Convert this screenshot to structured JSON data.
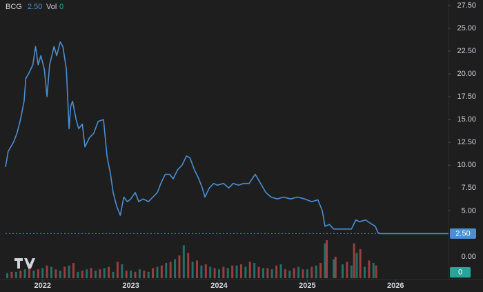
{
  "chart_data": {
    "type": "line",
    "ticker": "BCG",
    "last_price": {
      "value": 2.5,
      "label": "2.50"
    },
    "volume_label": "Vol",
    "last_volume": 0,
    "line_color": "#4a8fd4",
    "xlim": [
      2021.58,
      2026.6
    ],
    "xticks": [
      2022,
      2023,
      2024,
      2025,
      2026
    ],
    "ylim": [
      2.0,
      28.1
    ],
    "yticks": [
      {
        "value": 27.5,
        "label": "27.50"
      },
      {
        "value": 25,
        "label": "25.00"
      },
      {
        "value": 22.5,
        "label": "22.50"
      },
      {
        "value": 20,
        "label": "20.00"
      },
      {
        "value": 17.5,
        "label": "17.50"
      },
      {
        "value": 15,
        "label": "15.00"
      },
      {
        "value": 12.5,
        "label": "12.50"
      },
      {
        "value": 10,
        "label": "10.00"
      },
      {
        "value": 7.5,
        "label": "7.50"
      },
      {
        "value": 5,
        "label": "5.00"
      }
    ],
    "volume_yticks": [
      {
        "value": 0,
        "label": "0.00"
      }
    ],
    "x": [
      2021.58,
      2021.61,
      2021.67,
      2021.71,
      2021.75,
      2021.79,
      2021.81,
      2021.84,
      2021.89,
      2021.92,
      2021.95,
      2021.98,
      2022.02,
      2022.05,
      2022.08,
      2022.13,
      2022.16,
      2022.2,
      2022.23,
      2022.27,
      2022.3,
      2022.32,
      2022.34,
      2022.38,
      2022.41,
      2022.45,
      2022.48,
      2022.53,
      2022.58,
      2022.63,
      2022.69,
      2022.73,
      2022.77,
      2022.8,
      2022.84,
      2022.88,
      2022.92,
      2022.96,
      2023,
      2023.05,
      2023.09,
      2023.14,
      2023.2,
      2023.25,
      2023.3,
      2023.34,
      2023.39,
      2023.44,
      2023.48,
      2023.53,
      2023.58,
      2023.63,
      2023.67,
      2023.72,
      2023.77,
      2023.81,
      2023.84,
      2023.89,
      2023.94,
      2023.98,
      2024.05,
      2024.11,
      2024.16,
      2024.22,
      2024.28,
      2024.34,
      2024.41,
      2024.47,
      2024.53,
      2024.59,
      2024.66,
      2024.73,
      2024.81,
      2024.89,
      2024.97,
      2025.05,
      2025.12,
      2025.17,
      2025.2,
      2025.25,
      2025.3,
      2025.36,
      2025.42,
      2025.5,
      2025.55,
      2025.59,
      2025.66,
      2025.72,
      2025.77,
      2025.8,
      2025.83,
      2026.6
    ],
    "values": [
      9.8,
      11.5,
      12.5,
      13.5,
      15,
      17,
      19.5,
      20,
      21,
      23,
      21,
      22,
      20.5,
      17.5,
      21,
      23,
      22,
      23.5,
      23,
      20.5,
      14,
      16.5,
      17,
      15,
      14,
      14.5,
      12,
      13,
      13.5,
      14.8,
      15,
      11,
      9,
      7,
      5.5,
      4.5,
      6.5,
      6,
      6.3,
      7,
      6,
      6.3,
      6,
      6.5,
      7,
      8,
      9,
      9,
      8.5,
      9.5,
      10,
      11,
      10.8,
      9.5,
      8.5,
      7.5,
      6.5,
      7.5,
      8,
      7.8,
      8,
      7.5,
      8,
      7.8,
      8,
      8,
      9,
      8,
      7,
      6.5,
      6.3,
      6.5,
      6.3,
      6.5,
      6.3,
      6,
      6.2,
      5,
      3.3,
      3.5,
      3,
      3,
      3,
      3,
      4,
      3.8,
      4,
      3.6,
      3.3,
      2.6,
      2.5,
      2.5
    ],
    "volume": [
      {
        "color": "#26a69a",
        "x": [
          2021.6,
          2021.7,
          2021.8,
          2021.9,
          2022.0,
          2022.1,
          2022.2,
          2022.3,
          2022.4,
          2022.5,
          2022.6,
          2022.7,
          2022.8,
          2022.9,
          2023.0,
          2023.1,
          2023.2,
          2023.3,
          2023.4,
          2023.5,
          2023.6,
          2023.7,
          2023.8,
          2023.9,
          2024.0,
          2024.1,
          2024.2,
          2024.3,
          2024.4,
          2024.5,
          2024.6,
          2024.7,
          2024.8,
          2024.9,
          2025.0,
          2025.1,
          2025.2,
          2025.3,
          2025.4,
          2025.5,
          2025.56,
          2025.65,
          2025.75
        ],
        "values": [
          8,
          10,
          14,
          12,
          16,
          18,
          12,
          20,
          10,
          14,
          12,
          16,
          10,
          22,
          12,
          14,
          10,
          18,
          24,
          30,
          52,
          26,
          20,
          18,
          14,
          16,
          20,
          18,
          24,
          16,
          14,
          22,
          12,
          18,
          14,
          20,
          55,
          30,
          22,
          20,
          40,
          18,
          24
        ]
      },
      {
        "color": "#ef5350",
        "x": [
          2021.65,
          2021.75,
          2021.85,
          2021.95,
          2022.05,
          2022.15,
          2022.25,
          2022.35,
          2022.45,
          2022.55,
          2022.65,
          2022.75,
          2022.85,
          2022.95,
          2023.05,
          2023.15,
          2023.25,
          2023.35,
          2023.45,
          2023.55,
          2023.65,
          2023.75,
          2023.85,
          2023.95,
          2024.05,
          2024.15,
          2024.25,
          2024.35,
          2024.45,
          2024.55,
          2024.65,
          2024.75,
          2024.85,
          2024.95,
          2025.05,
          2025.15,
          2025.22,
          2025.32,
          2025.45,
          2025.53,
          2025.6,
          2025.7,
          2025.78
        ],
        "values": [
          10,
          12,
          16,
          14,
          20,
          14,
          18,
          24,
          12,
          16,
          14,
          18,
          26,
          12,
          10,
          12,
          16,
          20,
          26,
          36,
          40,
          28,
          22,
          16,
          18,
          20,
          22,
          26,
          18,
          16,
          20,
          14,
          16,
          14,
          18,
          24,
          60,
          34,
          26,
          55,
          46,
          28,
          20
        ]
      }
    ],
    "volume_color": "#26a69a"
  }
}
